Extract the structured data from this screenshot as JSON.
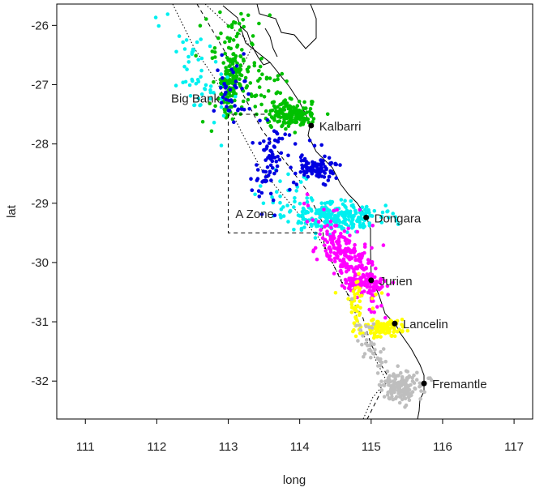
{
  "chart_data": {
    "type": "scatter",
    "xlabel": "long",
    "ylabel": "lat",
    "xlim": [
      110.6,
      117.26
    ],
    "ylim": [
      -32.64,
      -25.64
    ],
    "x_ticks": [
      "111",
      "112",
      "113",
      "114",
      "115",
      "116",
      "117"
    ],
    "y_ticks": [
      "-26",
      "-27",
      "-28",
      "-29",
      "-30",
      "-31",
      "-32"
    ],
    "grid": false,
    "point_colors": {
      "green": "#00c000",
      "blue": "#0000e0",
      "cyan": "#00f0f0",
      "magenta": "#ff00ff",
      "yellow": "#ffff00",
      "gray": "#bebebe"
    },
    "towns": [
      {
        "name": "Kalbarri",
        "lon": 114.16,
        "lat": -27.69
      },
      {
        "name": "Dongara",
        "lon": 114.93,
        "lat": -29.24
      },
      {
        "name": "Jurien",
        "lon": 115.0,
        "lat": -30.3
      },
      {
        "name": "Lancelin",
        "lon": 115.33,
        "lat": -31.03
      },
      {
        "name": "Fremantle",
        "lon": 115.74,
        "lat": -32.04
      }
    ],
    "annotations": [
      {
        "text": "Big Bank",
        "lon": 112.2,
        "lat": -27.3
      },
      {
        "text": "A Zone",
        "lon": 113.1,
        "lat": -29.25
      }
    ],
    "a_zone_box": {
      "lon_min": 113.0,
      "lon_max": 114.25,
      "lat_min": -29.5,
      "lat_max": -27.5
    }
  }
}
